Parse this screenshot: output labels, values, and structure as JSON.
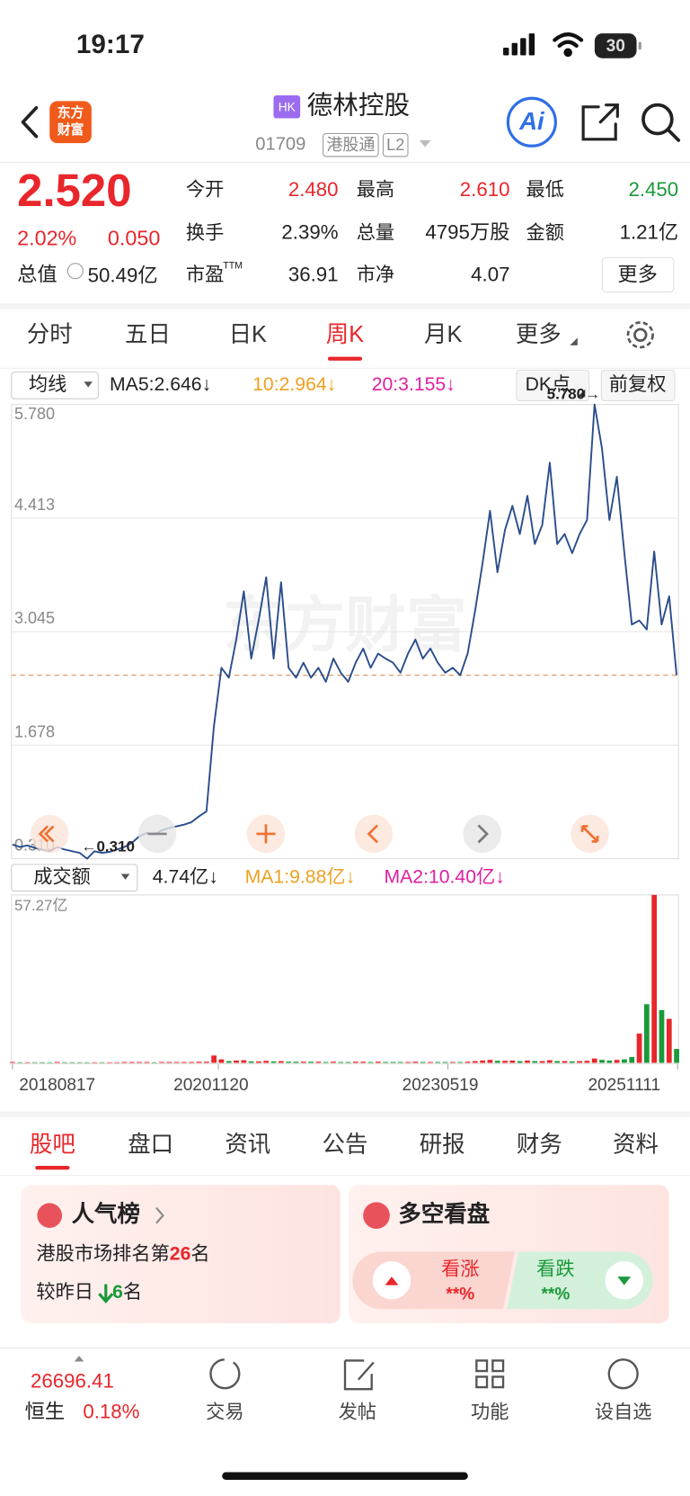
{
  "status_bar": {
    "time": "19:17",
    "battery": "30"
  },
  "header": {
    "logo": [
      "东方",
      "财富"
    ],
    "badge": "HK",
    "name": "德林控股",
    "code": "01709",
    "tags": [
      "港股通",
      "L2"
    ],
    "ai": "Ai"
  },
  "quote": {
    "price": "2.520",
    "change_pct": "2.02%",
    "change": "0.050",
    "market_cap_label": "总值",
    "market_cap": "50.49亿",
    "stats": [
      {
        "label": "今开",
        "value": "2.480",
        "color": "#e8262b"
      },
      {
        "label": "最高",
        "value": "2.610",
        "color": "#e8262b"
      },
      {
        "label": "最低",
        "value": "2.450",
        "color": "#1a9a3a"
      },
      {
        "label": "换手",
        "value": "2.39%",
        "color": "#222222"
      },
      {
        "label": "总量",
        "value": "4795万股",
        "color": "#222222"
      },
      {
        "label": "金额",
        "value": "1.21亿",
        "color": "#222222"
      },
      {
        "label": "市盈",
        "sup": "TTM",
        "value": "36.91",
        "color": "#222222"
      },
      {
        "label": "市净",
        "value": "4.07",
        "color": "#222222"
      }
    ],
    "more": "更多"
  },
  "tabs": {
    "items": [
      "分时",
      "五日",
      "日K",
      "周K",
      "月K",
      "更多"
    ],
    "active": 3
  },
  "ma_bar": {
    "selector": "均线",
    "ma5": "MA5:2.646↓",
    "ma10": "10:2.964↓",
    "ma20": "20:3.155↓",
    "dk": "DK点",
    "adjust": "前复权"
  },
  "price_chart": {
    "type": "line",
    "color": "#2b4d8c",
    "watermark": "东方财富",
    "ylim": [
      0.31,
      5.78
    ],
    "yticks": [
      {
        "value": 0.31,
        "label": "0.310"
      },
      {
        "value": 1.678,
        "label": "1.678"
      },
      {
        "value": 3.045,
        "label": "3.045"
      },
      {
        "value": 4.413,
        "label": "4.413"
      },
      {
        "value": 5.78,
        "label": "5.780"
      }
    ],
    "grid": true,
    "reference_line": 2.52,
    "max_label": "5.780→",
    "min_label": "←0.310",
    "values": [
      0.48,
      0.45,
      0.47,
      0.44,
      0.42,
      0.4,
      0.45,
      0.42,
      0.4,
      0.38,
      0.31,
      0.4,
      0.38,
      0.39,
      0.42,
      0.45,
      0.5,
      0.58,
      0.62,
      0.6,
      0.65,
      0.68,
      0.7,
      0.72,
      0.75,
      0.82,
      0.88,
      1.9,
      2.61,
      2.49,
      2.95,
      3.53,
      2.72,
      3.18,
      3.7,
      2.72,
      3.64,
      2.61,
      2.49,
      2.67,
      2.49,
      2.61,
      2.44,
      2.72,
      2.55,
      2.44,
      2.67,
      2.84,
      2.61,
      2.78,
      2.72,
      2.67,
      2.55,
      2.78,
      2.95,
      2.72,
      2.84,
      2.67,
      2.55,
      2.61,
      2.52,
      2.78,
      3.3,
      3.87,
      4.5,
      3.76,
      4.27,
      4.56,
      4.22,
      4.68,
      4.1,
      4.33,
      5.08,
      4.1,
      4.22,
      3.99,
      4.22,
      4.39,
      5.78,
      5.25,
      4.39,
      4.91,
      3.99,
      3.13,
      3.18,
      3.07,
      4.01,
      3.13,
      3.47,
      2.52
    ]
  },
  "volume_bar": {
    "selector": "成交额",
    "current": "4.74亿↓",
    "ma1": "MA1:9.88亿↓",
    "ma2": "MA2:10.40亿↓"
  },
  "volume_chart": {
    "type": "bar",
    "ylim": [
      0,
      57.27
    ],
    "max_label": "57.27亿",
    "up_color": "#e8262b",
    "down_color": "#1a9a3a",
    "x_labels": [
      "20180817",
      "20201120",
      "20230519",
      "20251111"
    ],
    "values": [
      0.3,
      0.2,
      0.2,
      0.2,
      0.2,
      0.2,
      0.3,
      0.2,
      0.2,
      0.2,
      0.2,
      0.2,
      0.2,
      0.2,
      0.2,
      0.3,
      0.3,
      0.3,
      0.3,
      0.2,
      0.3,
      0.3,
      0.3,
      0.3,
      0.3,
      0.4,
      0.4,
      2.5,
      1.2,
      0.6,
      0.8,
      0.9,
      0.5,
      0.5,
      0.7,
      0.5,
      0.6,
      0.4,
      0.4,
      0.4,
      0.4,
      0.4,
      0.3,
      0.4,
      0.3,
      0.3,
      0.4,
      0.4,
      0.3,
      0.4,
      0.3,
      0.3,
      0.3,
      0.3,
      0.4,
      0.3,
      0.3,
      0.3,
      0.3,
      0.3,
      0.3,
      0.4,
      0.6,
      0.8,
      1.0,
      0.7,
      0.7,
      0.8,
      0.6,
      0.8,
      0.6,
      0.6,
      0.9,
      0.6,
      0.6,
      0.5,
      0.6,
      0.7,
      1.5,
      1.0,
      0.8,
      1.0,
      1.2,
      2.0,
      10.0,
      20.0,
      57.27,
      18.0,
      15.0,
      4.74
    ]
  },
  "section_tabs": {
    "items": [
      "股吧",
      "盘口",
      "资讯",
      "公告",
      "研报",
      "财务",
      "资料"
    ],
    "active": 0
  },
  "cards": {
    "popularity": {
      "title": "人气榜",
      "line1_pre": "港股市场排名第",
      "rank": "26",
      "line1_post": "名",
      "line2_pre": "较昨日",
      "change": "6",
      "line2_post": "名"
    },
    "sentiment": {
      "title": "多空看盘",
      "up": "看涨",
      "up_value": "**%",
      "down": "看跌",
      "down_value": "**%"
    }
  },
  "bottom_bar": {
    "index_value": "26696.41",
    "index_name": "恒生",
    "index_change": "0.18%",
    "items": [
      "交易",
      "发帖",
      "功能",
      "设自选"
    ]
  }
}
